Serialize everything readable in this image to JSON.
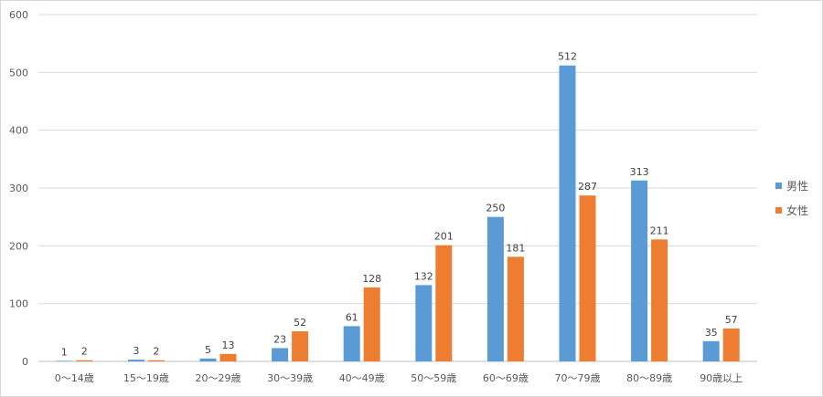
{
  "chart_data": {
    "type": "bar",
    "categories": [
      "0〜14歳",
      "15〜19歳",
      "20〜29歳",
      "30〜39歳",
      "40〜49歳",
      "50〜59歳",
      "60〜69歳",
      "70〜79歳",
      "80〜89歳",
      "90歳以上"
    ],
    "series": [
      {
        "name": "男性",
        "color": "#5B9BD5",
        "values": [
          1,
          3,
          5,
          23,
          61,
          132,
          250,
          512,
          313,
          35
        ]
      },
      {
        "name": "女性",
        "color": "#ED7D31",
        "values": [
          2,
          2,
          13,
          52,
          128,
          201,
          181,
          287,
          211,
          57
        ]
      }
    ],
    "ylim": [
      0,
      600
    ],
    "yticks": [
      0,
      100,
      200,
      300,
      400,
      500,
      600
    ],
    "grid": "horizontal",
    "legend_position": "right",
    "data_labels": true
  }
}
